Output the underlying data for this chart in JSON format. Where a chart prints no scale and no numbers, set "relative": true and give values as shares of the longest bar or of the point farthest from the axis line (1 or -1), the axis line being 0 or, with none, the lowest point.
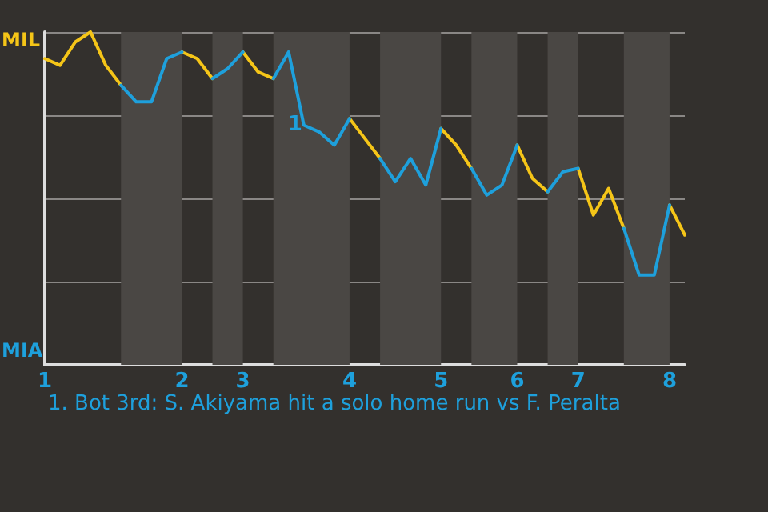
{
  "chart_data": {
    "type": "line",
    "categories": [
      "1",
      null,
      null,
      null,
      null,
      null,
      null,
      null,
      null,
      "2",
      null,
      null,
      null,
      "3",
      null,
      null,
      null,
      null,
      null,
      null,
      "4",
      null,
      null,
      null,
      null,
      null,
      "5",
      null,
      null,
      null,
      null,
      "6",
      null,
      null,
      null,
      "7",
      null,
      null,
      null,
      null,
      null,
      "8",
      null
    ],
    "relative": true,
    "series": [
      {
        "color": "#f5c518",
        "values": [
          0.92,
          0.9,
          0.97,
          1,
          0.9,
          0.84,
          null,
          null,
          null,
          0.94,
          0.92,
          0.86,
          null,
          0.94,
          0.88,
          0.86,
          null,
          null,
          null,
          null,
          0.74,
          0.68,
          0.62,
          null,
          null,
          null,
          0.71,
          0.66,
          0.59,
          null,
          null,
          0.66,
          0.56,
          0.52,
          null,
          0.59,
          0.45,
          0.53,
          0.41,
          null,
          null,
          0.48,
          0.39
        ]
      },
      {
        "color": "#1ea0dc",
        "values": [
          null,
          null,
          null,
          null,
          null,
          0.84,
          0.79,
          0.79,
          0.92,
          0.94,
          null,
          0.86,
          0.89,
          0.94,
          null,
          0.86,
          0.94,
          0.72,
          0.7,
          0.66,
          0.74,
          null,
          0.62,
          0.55,
          0.62,
          0.54,
          0.71,
          null,
          0.59,
          0.51,
          0.54,
          0.66,
          null,
          0.52,
          0.58,
          0.59,
          null,
          null,
          0.41,
          0.27,
          0.27,
          0.48,
          null
        ]
      }
    ],
    "grid": "y",
    "annotations": [
      "MIL",
      "MIA",
      {
        "text": "1",
        "y": 0.72
      },
      "1. Bot 3rd: S. Akiyama hit a solo home run vs F. Peralta"
    ]
  }
}
